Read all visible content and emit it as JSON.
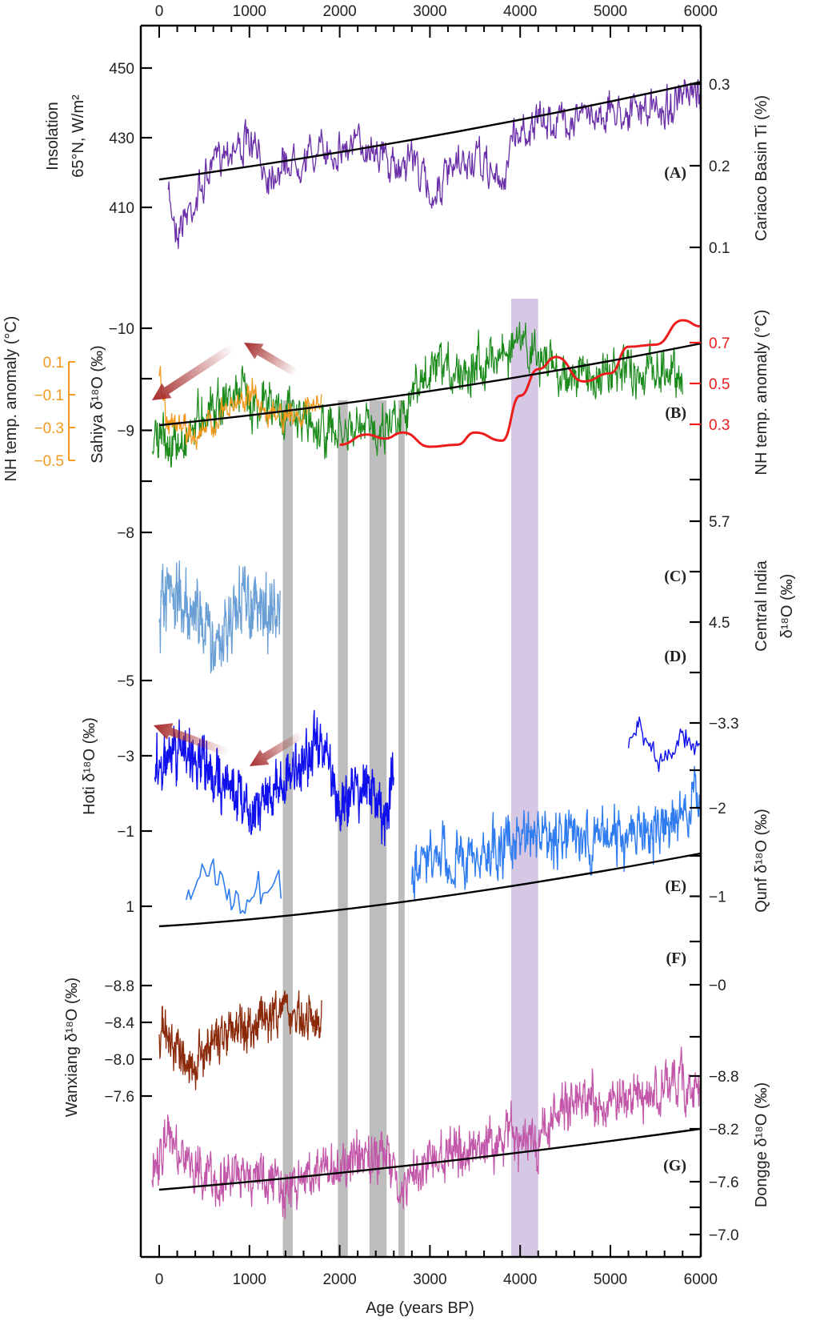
{
  "chart_data": {
    "type": "line",
    "title": "",
    "xlabel": "Age (years BP)",
    "xlim": [
      -100,
      6000
    ],
    "x_ticks": [
      0,
      1000,
      2000,
      3000,
      4000,
      5000,
      6000
    ],
    "x_minor_step": 200,
    "grid": false,
    "shaded_intervals": [
      {
        "name": "dry-event-1",
        "from": 1370,
        "to": 1480,
        "color": "#bdbdbd"
      },
      {
        "name": "dry-event-2",
        "from": 1980,
        "to": 2090,
        "color": "#bdbdbd"
      },
      {
        "name": "dry-event-3",
        "from": 2330,
        "to": 2520,
        "color": "#bdbdbd"
      },
      {
        "name": "dry-event-4",
        "from": 2650,
        "to": 2720,
        "color": "#bdbdbd"
      },
      {
        "name": "4.2-ka-event",
        "from": 3900,
        "to": 4200,
        "color": "#d6c8e4"
      }
    ],
    "panels": [
      {
        "id": "A",
        "label": "(A)",
        "left_axis": {
          "title_lines": [
            "Insolation",
            "65°N, W/m²"
          ],
          "ticks": [
            450,
            430,
            410
          ],
          "color": "#222222"
        },
        "right_axis": {
          "title": "Cariaco Basin Ti (%)",
          "ticks": [
            0.3,
            0.2,
            0.1
          ],
          "color": "#222222"
        },
        "series": [
          {
            "name": "Cariaco Basin Ti",
            "color": "#6a2fa8",
            "x_range": [
              100,
              6000
            ],
            "approx_mean": [
              0.19,
              0.22,
              0.23,
              0.19,
              0.22,
              0.27,
              0.28,
              0.3
            ],
            "approx_x": [
              100,
              1000,
              2000,
              3000,
              3800,
              4500,
              5000,
              6000
            ]
          },
          {
            "name": "Insolation 65°N",
            "color": "#000000",
            "x": [
              0,
              6000
            ],
            "y": [
              418,
              446
            ],
            "style": "trend"
          }
        ]
      },
      {
        "id": "B",
        "label": "(B)",
        "left_axis": {
          "title": "Sahiya δ18O (‰)",
          "ticks": [
            -10,
            -9,
            -8
          ],
          "color": "#222222"
        },
        "left_axis_2": {
          "title": "NH temp. anomaly (°C)",
          "ticks": [
            0.1,
            -0.1,
            -0.3,
            -0.5
          ],
          "color": "#f39a1e"
        },
        "right_axis": {
          "title": "NH temp. anomaly (°C)",
          "ticks": [
            0.7,
            0.5,
            0.3
          ],
          "color": "#ee1c1c"
        },
        "series": [
          {
            "name": "Sahiya δ18O",
            "color": "#1a8a1a",
            "x_range": [
              -100,
              5800
            ]
          },
          {
            "name": "NH temp. anomaly (last 2 ka)",
            "color": "#f39a1e",
            "x_range": [
              0,
              1800
            ]
          },
          {
            "name": "NH temp. anomaly (Holocene)",
            "color": "#ee1c1c",
            "x": [
              2000,
              2300,
              2500,
              2700,
              3000,
              3300,
              3500,
              3800,
              4000,
              4200,
              4400,
              4700,
              5000,
              5200,
              5500,
              5800,
              6000
            ],
            "y": [
              0.2,
              0.25,
              0.23,
              0.26,
              0.19,
              0.2,
              0.26,
              0.22,
              0.44,
              0.57,
              0.63,
              0.51,
              0.55,
              0.68,
              0.69,
              0.81,
              0.78
            ]
          },
          {
            "name": "Sahiya trend",
            "color": "#000000",
            "style": "trend",
            "x": [
              0,
              6000
            ],
            "y": [
              -9.05,
              -9.85
            ]
          }
        ]
      },
      {
        "id": "C",
        "label": "(C)",
        "left_axis": {
          "title": "",
          "ticks": [],
          "color": "#222222"
        },
        "right_axis": {
          "title_lines": [
            "Central India",
            "δ18O (‰)"
          ],
          "ticks": [
            5.7,
            4.5
          ],
          "color": "#222222"
        },
        "series": [
          {
            "name": "Central India δ18O",
            "color": "#6a9fd6",
            "x_range": [
              0,
              1350
            ]
          }
        ]
      },
      {
        "id": "D",
        "label": "(D)",
        "left_axis": {
          "title": "Hoti δ18O (‰)",
          "ticks": [
            -5,
            -3,
            -1,
            1
          ],
          "color": "#222222"
        },
        "right_axis": {
          "title": "",
          "ticks": [
            -3.3
          ],
          "color": "#222222"
        },
        "series": [
          {
            "name": "Hoti δ18O",
            "color": "#1010ee",
            "x_range": [
              -50,
              2600
            ]
          },
          {
            "name": "Hoti δ18O (older)",
            "color": "#1010ee",
            "x_range": [
              5200,
              6000
            ]
          }
        ]
      },
      {
        "id": "E",
        "label": "(E)",
        "left_axis": {
          "title": "",
          "ticks": [],
          "color": "#222222"
        },
        "right_axis": {
          "title": "Qunf δ18O (‰)",
          "ticks": [
            -2,
            -1,
            0
          ],
          "color": "#222222"
        },
        "series": [
          {
            "name": "Qunf δ18O",
            "color": "#2f7cf0",
            "x_range": [
              300,
              6000
            ]
          },
          {
            "name": "Qunf trend",
            "color": "#000000",
            "style": "trend",
            "x": [
              0,
              6000
            ],
            "y": [
              -0.6,
              -1.7
            ]
          }
        ]
      },
      {
        "id": "F",
        "label": "(F)",
        "left_axis": {
          "title": "Wanxiang δ18O (‰)",
          "ticks": [
            -8.8,
            -8.4,
            -8.0,
            -7.6
          ],
          "color": "#222222"
        },
        "right_axis": {
          "title": "",
          "ticks": [],
          "color": "#222222"
        },
        "series": [
          {
            "name": "Wanxiang δ18O",
            "color": "#8b2a0a",
            "x_range": [
              0,
              1800
            ]
          }
        ]
      },
      {
        "id": "G",
        "label": "(G)",
        "left_axis": {
          "title": "",
          "ticks": [],
          "color": "#222222"
        },
        "right_axis": {
          "title": "Dongge δ18O (‰)",
          "ticks": [
            -8.8,
            -8.2,
            -7.6,
            -7.0
          ],
          "color": "#222222"
        },
        "series": [
          {
            "name": "Dongge δ18O",
            "color": "#c256a8",
            "x_range": [
              -80,
              6000
            ]
          },
          {
            "name": "Dongge trend",
            "color": "#000000",
            "style": "trend",
            "x": [
              0,
              6000
            ],
            "y": [
              -7.25,
              -8.2
            ]
          }
        ]
      }
    ],
    "annotations": [
      {
        "type": "arrow",
        "panel": "B",
        "color": "#a52a2a",
        "note": "gradient arrows indicating trend reversal"
      },
      {
        "type": "arrow",
        "panel": "D",
        "color": "#a52a2a",
        "note": "gradient arrows indicating trend reversal"
      }
    ]
  }
}
